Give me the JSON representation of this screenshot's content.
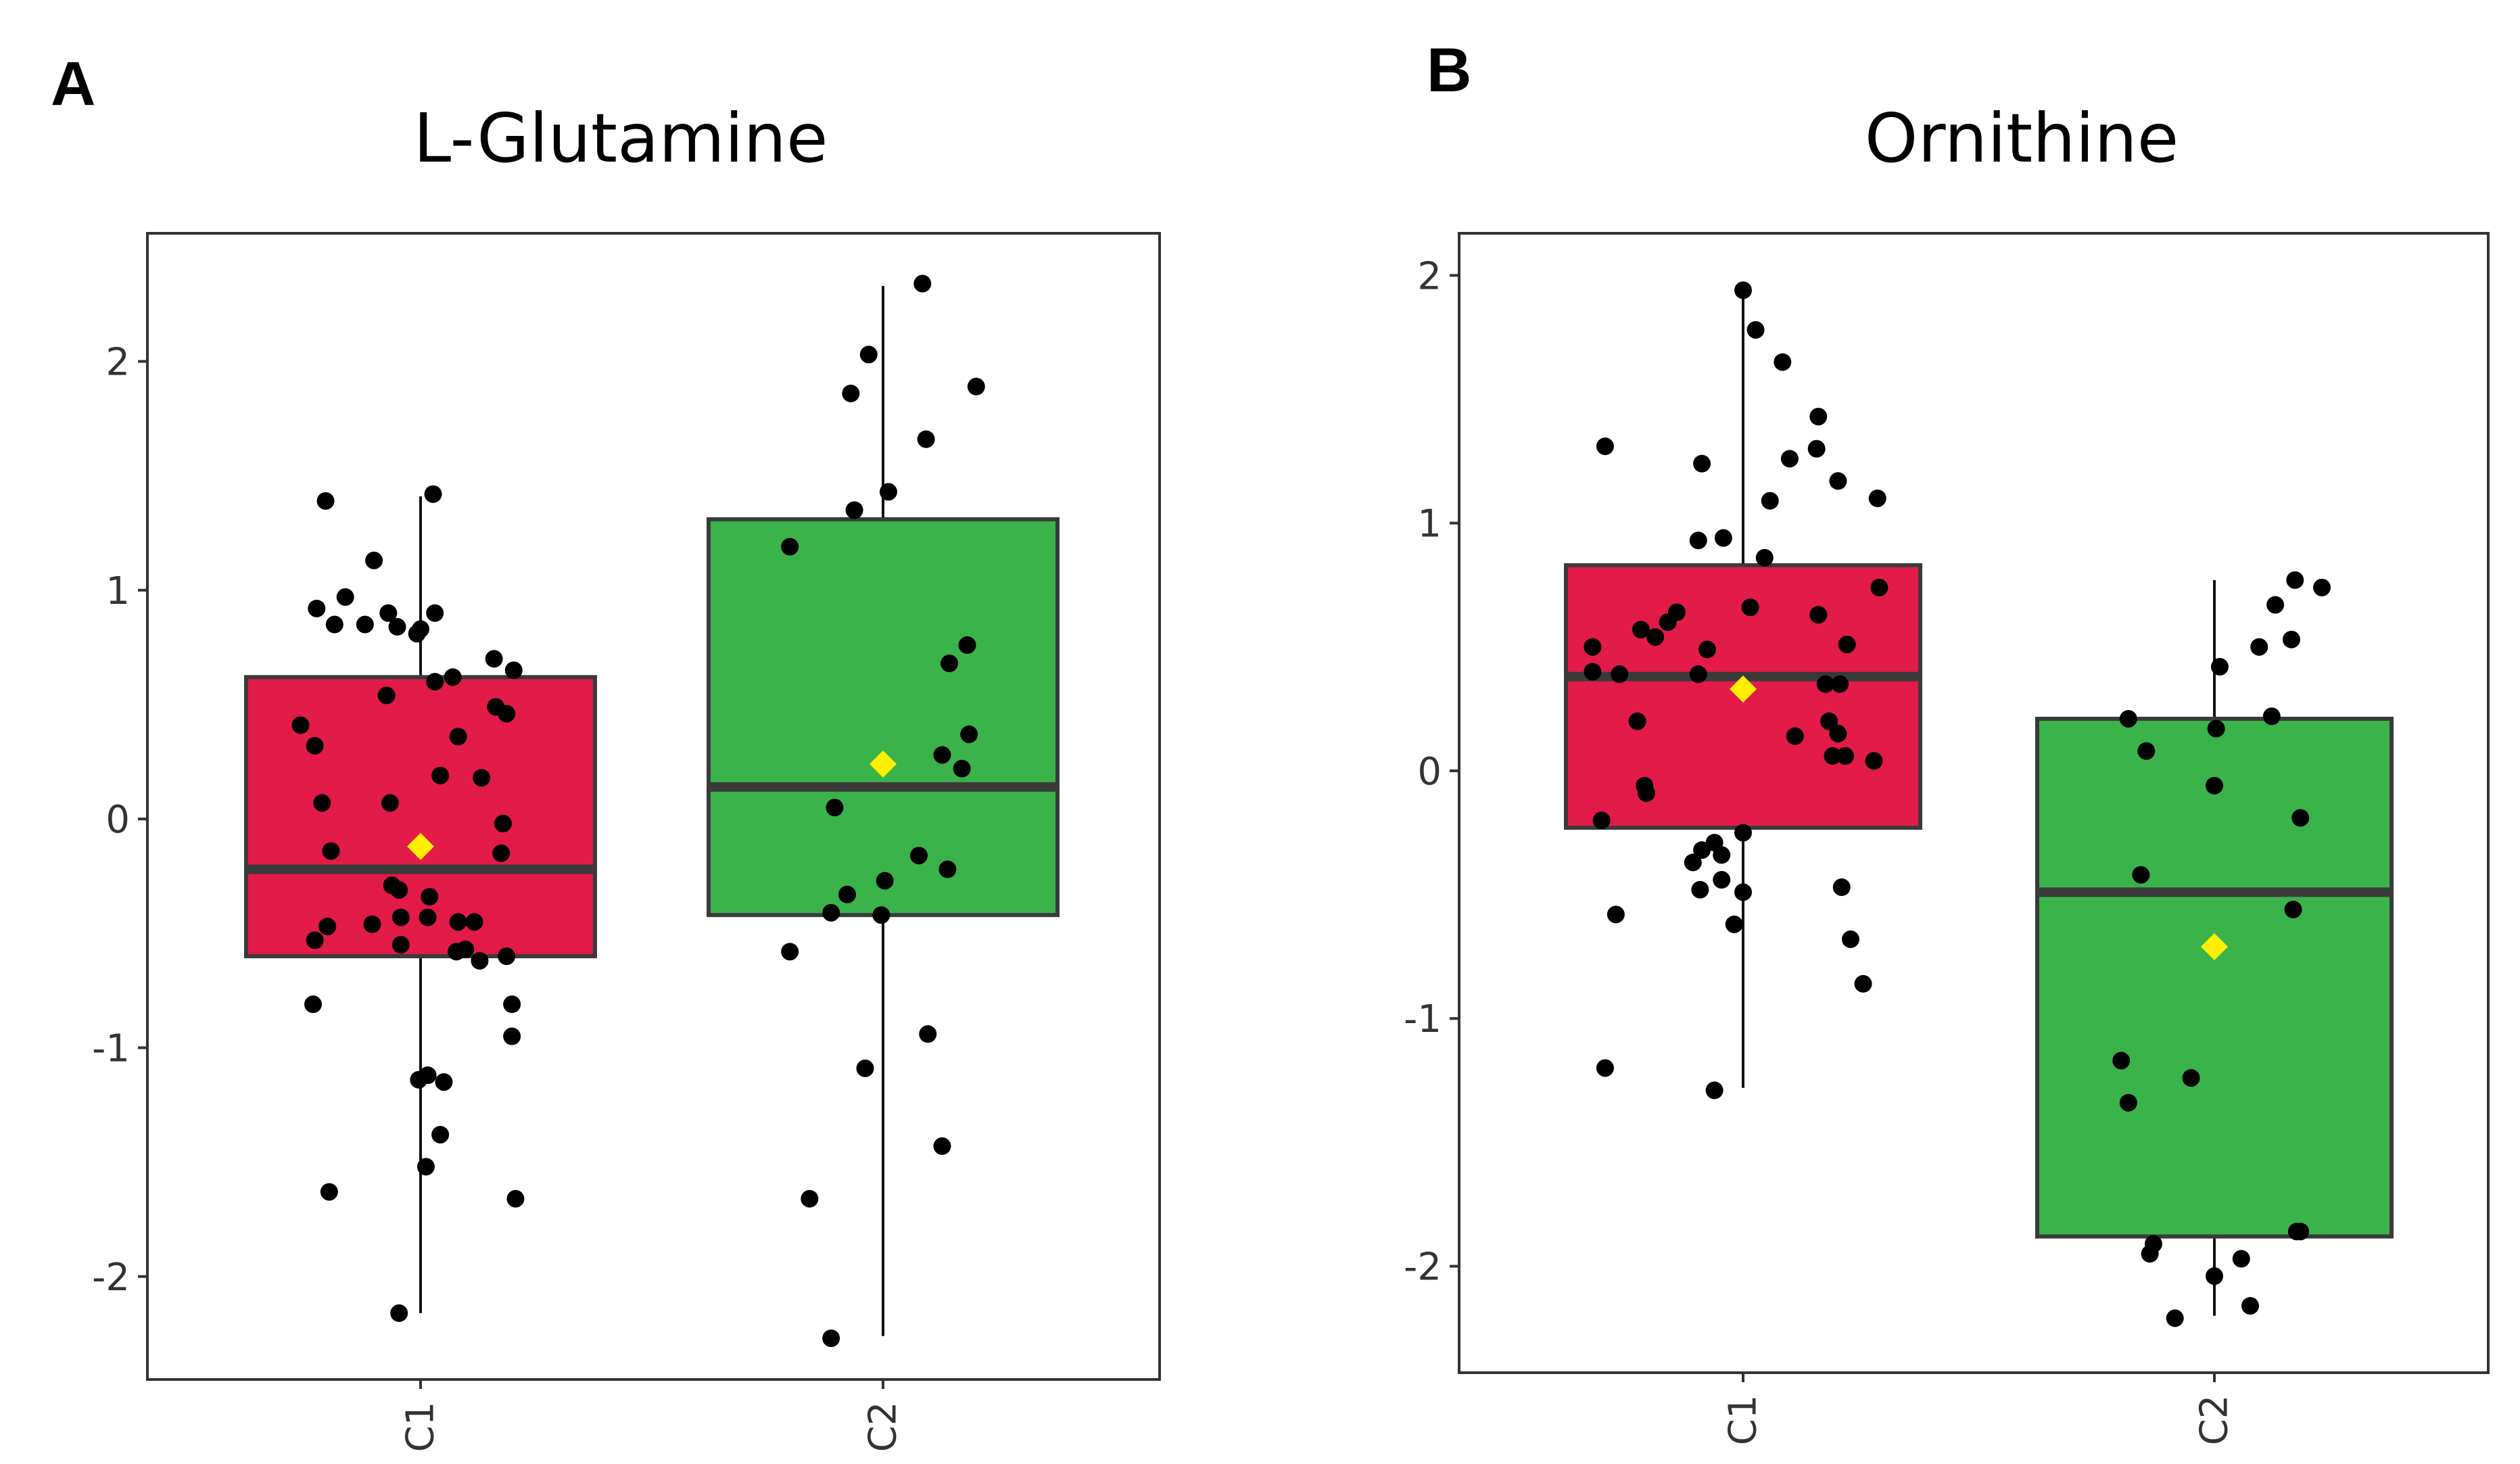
{
  "chart_data": [
    {
      "panel_label": "A",
      "type": "box",
      "title": "L-Glutamine",
      "xlabel": "",
      "ylabel": "",
      "categories": [
        "C1",
        "C2"
      ],
      "y_ticks": [
        2,
        1,
        0,
        -1,
        -2
      ],
      "y_tick_labels": [
        "2",
        "1",
        "0",
        "-1",
        "-2"
      ],
      "ylim": [
        -2.45,
        2.56
      ],
      "colors": {
        "C1": "#e31b48",
        "C2": "#3bb34b",
        "mean": "#ffee00",
        "points": "#000000"
      },
      "boxes": [
        {
          "category": "C1",
          "whisker_low": -2.16,
          "q1": -0.6,
          "median": -0.22,
          "q3": 0.62,
          "whisker_high": 1.41,
          "mean": -0.12
        },
        {
          "category": "C2",
          "whisker_low": -2.26,
          "q1": -0.42,
          "median": 0.14,
          "q3": 1.31,
          "whisker_high": 2.33,
          "mean": 0.24
        }
      ],
      "points": [
        {
          "category": "C1",
          "jitter": -0.53,
          "y": 1.39
        },
        {
          "category": "C1",
          "jitter": -0.26,
          "y": 1.13
        },
        {
          "category": "C1",
          "jitter": -0.42,
          "y": 0.97
        },
        {
          "category": "C1",
          "jitter": -0.48,
          "y": 0.85
        },
        {
          "category": "C1",
          "jitter": -0.13,
          "y": 0.84
        },
        {
          "category": "C1",
          "jitter": -0.31,
          "y": 0.85
        },
        {
          "category": "C1",
          "jitter": -0.58,
          "y": 0.92
        },
        {
          "category": "C1",
          "jitter": -0.18,
          "y": 0.9
        },
        {
          "category": "C1",
          "jitter": -0.02,
          "y": 0.81
        },
        {
          "category": "C1",
          "jitter": 0.0,
          "y": 0.83
        },
        {
          "category": "C1",
          "jitter": 0.08,
          "y": 0.9
        },
        {
          "category": "C1",
          "jitter": 0.07,
          "y": 1.42
        },
        {
          "category": "C1",
          "jitter": 0.41,
          "y": 0.7
        },
        {
          "category": "C1",
          "jitter": 0.52,
          "y": 0.65
        },
        {
          "category": "C1",
          "jitter": 0.18,
          "y": 0.62
        },
        {
          "category": "C1",
          "jitter": 0.08,
          "y": 0.6
        },
        {
          "category": "C1",
          "jitter": -0.67,
          "y": 0.41
        },
        {
          "category": "C1",
          "jitter": -0.59,
          "y": 0.32
        },
        {
          "category": "C1",
          "jitter": -0.19,
          "y": 0.54
        },
        {
          "category": "C1",
          "jitter": 0.21,
          "y": 0.36
        },
        {
          "category": "C1",
          "jitter": 0.11,
          "y": 0.19
        },
        {
          "category": "C1",
          "jitter": 0.34,
          "y": 0.18
        },
        {
          "category": "C1",
          "jitter": 0.42,
          "y": 0.49
        },
        {
          "category": "C1",
          "jitter": 0.48,
          "y": 0.46
        },
        {
          "category": "C1",
          "jitter": -0.17,
          "y": 0.07
        },
        {
          "category": "C1",
          "jitter": -0.55,
          "y": 0.07
        },
        {
          "category": "C1",
          "jitter": -0.5,
          "y": -0.14
        },
        {
          "category": "C1",
          "jitter": 0.46,
          "y": -0.02
        },
        {
          "category": "C1",
          "jitter": 0.45,
          "y": -0.15
        },
        {
          "category": "C1",
          "jitter": -0.16,
          "y": -0.29
        },
        {
          "category": "C1",
          "jitter": -0.12,
          "y": -0.31
        },
        {
          "category": "C1",
          "jitter": 0.05,
          "y": -0.34
        },
        {
          "category": "C1",
          "jitter": -0.11,
          "y": -0.43
        },
        {
          "category": "C1",
          "jitter": 0.04,
          "y": -0.43
        },
        {
          "category": "C1",
          "jitter": 0.21,
          "y": -0.45
        },
        {
          "category": "C1",
          "jitter": 0.3,
          "y": -0.45
        },
        {
          "category": "C1",
          "jitter": -0.27,
          "y": -0.46
        },
        {
          "category": "C1",
          "jitter": -0.52,
          "y": -0.47
        },
        {
          "category": "C1",
          "jitter": -0.59,
          "y": -0.53
        },
        {
          "category": "C1",
          "jitter": -0.11,
          "y": -0.55
        },
        {
          "category": "C1",
          "jitter": 0.2,
          "y": -0.58
        },
        {
          "category": "C1",
          "jitter": 0.25,
          "y": -0.57
        },
        {
          "category": "C1",
          "jitter": 0.33,
          "y": -0.62
        },
        {
          "category": "C1",
          "jitter": 0.48,
          "y": -0.6
        },
        {
          "category": "C1",
          "jitter": -0.6,
          "y": -0.81
        },
        {
          "category": "C1",
          "jitter": 0.51,
          "y": -0.81
        },
        {
          "category": "C1",
          "jitter": 0.51,
          "y": -0.95
        },
        {
          "category": "C1",
          "jitter": -0.01,
          "y": -1.14
        },
        {
          "category": "C1",
          "jitter": 0.04,
          "y": -1.12
        },
        {
          "category": "C1",
          "jitter": 0.13,
          "y": -1.15
        },
        {
          "category": "C1",
          "jitter": 0.11,
          "y": -1.38
        },
        {
          "category": "C1",
          "jitter": 0.03,
          "y": -1.52
        },
        {
          "category": "C1",
          "jitter": -0.51,
          "y": -1.63
        },
        {
          "category": "C1",
          "jitter": 0.53,
          "y": -1.66
        },
        {
          "category": "C1",
          "jitter": -0.12,
          "y": -2.16
        },
        {
          "category": "C2",
          "jitter": 0.22,
          "y": 2.34
        },
        {
          "category": "C2",
          "jitter": 0.52,
          "y": 1.89
        },
        {
          "category": "C2",
          "jitter": -0.08,
          "y": 2.03
        },
        {
          "category": "C2",
          "jitter": -0.18,
          "y": 1.86
        },
        {
          "category": "C2",
          "jitter": 0.24,
          "y": 1.66
        },
        {
          "category": "C2",
          "jitter": 0.03,
          "y": 1.43
        },
        {
          "category": "C2",
          "jitter": -0.16,
          "y": 1.35
        },
        {
          "category": "C2",
          "jitter": -0.52,
          "y": 1.19
        },
        {
          "category": "C2",
          "jitter": 0.47,
          "y": 0.76
        },
        {
          "category": "C2",
          "jitter": 0.37,
          "y": 0.68
        },
        {
          "category": "C2",
          "jitter": 0.48,
          "y": 0.37
        },
        {
          "category": "C2",
          "jitter": 0.33,
          "y": 0.28
        },
        {
          "category": "C2",
          "jitter": 0.44,
          "y": 0.22
        },
        {
          "category": "C2",
          "jitter": -0.27,
          "y": 0.05
        },
        {
          "category": "C2",
          "jitter": 0.2,
          "y": -0.16
        },
        {
          "category": "C2",
          "jitter": 0.36,
          "y": -0.22
        },
        {
          "category": "C2",
          "jitter": 0.01,
          "y": -0.27
        },
        {
          "category": "C2",
          "jitter": -0.2,
          "y": -0.33
        },
        {
          "category": "C2",
          "jitter": -0.29,
          "y": -0.41
        },
        {
          "category": "C2",
          "jitter": -0.01,
          "y": -0.42
        },
        {
          "category": "C2",
          "jitter": -0.52,
          "y": -0.58
        },
        {
          "category": "C2",
          "jitter": 0.25,
          "y": -0.94
        },
        {
          "category": "C2",
          "jitter": -0.1,
          "y": -1.09
        },
        {
          "category": "C2",
          "jitter": 0.33,
          "y": -1.43
        },
        {
          "category": "C2",
          "jitter": -0.41,
          "y": -1.66
        },
        {
          "category": "C2",
          "jitter": -0.29,
          "y": -2.27
        }
      ]
    },
    {
      "panel_label": "B",
      "type": "box",
      "title": "Ornithine",
      "xlabel": "",
      "ylabel": "",
      "categories": [
        "C1",
        "C2"
      ],
      "y_ticks": [
        2,
        1,
        0,
        -1,
        -2
      ],
      "y_tick_labels": [
        "2",
        "1",
        "0",
        "-1",
        "-2"
      ],
      "ylim": [
        -2.43,
        2.17
      ],
      "colors": {
        "C1": "#e31b48",
        "C2": "#3bb34b",
        "mean": "#ffee00",
        "points": "#000000"
      },
      "boxes": [
        {
          "category": "C1",
          "whisker_low": -1.28,
          "q1": -0.23,
          "median": 0.38,
          "q3": 0.83,
          "whisker_high": 1.94,
          "mean": 0.33
        },
        {
          "category": "C2",
          "whisker_low": -2.2,
          "q1": -1.88,
          "median": -0.49,
          "q3": 0.21,
          "whisker_high": 0.77,
          "mean": -0.71
        }
      ],
      "points": [
        {
          "category": "C1",
          "jitter": 0.0,
          "y": 1.94
        },
        {
          "category": "C1",
          "jitter": 0.07,
          "y": 1.78
        },
        {
          "category": "C1",
          "jitter": 0.22,
          "y": 1.65
        },
        {
          "category": "C1",
          "jitter": 0.42,
          "y": 1.43
        },
        {
          "category": "C1",
          "jitter": -0.77,
          "y": 1.31
        },
        {
          "category": "C1",
          "jitter": 0.41,
          "y": 1.3
        },
        {
          "category": "C1",
          "jitter": 0.26,
          "y": 1.26
        },
        {
          "category": "C1",
          "jitter": -0.23,
          "y": 1.24
        },
        {
          "category": "C1",
          "jitter": 0.53,
          "y": 1.17
        },
        {
          "category": "C1",
          "jitter": 0.15,
          "y": 1.09
        },
        {
          "category": "C1",
          "jitter": 0.75,
          "y": 1.1
        },
        {
          "category": "C1",
          "jitter": -0.25,
          "y": 0.93
        },
        {
          "category": "C1",
          "jitter": -0.11,
          "y": 0.94
        },
        {
          "category": "C1",
          "jitter": 0.12,
          "y": 0.86
        },
        {
          "category": "C1",
          "jitter": 0.76,
          "y": 0.74
        },
        {
          "category": "C1",
          "jitter": 0.04,
          "y": 0.66
        },
        {
          "category": "C1",
          "jitter": 0.42,
          "y": 0.63
        },
        {
          "category": "C1",
          "jitter": -0.37,
          "y": 0.64
        },
        {
          "category": "C1",
          "jitter": -0.42,
          "y": 0.6
        },
        {
          "category": "C1",
          "jitter": -0.57,
          "y": 0.57
        },
        {
          "category": "C1",
          "jitter": -0.49,
          "y": 0.54
        },
        {
          "category": "C1",
          "jitter": -0.84,
          "y": 0.5
        },
        {
          "category": "C1",
          "jitter": -0.2,
          "y": 0.49
        },
        {
          "category": "C1",
          "jitter": 0.58,
          "y": 0.51
        },
        {
          "category": "C1",
          "jitter": -0.84,
          "y": 0.4
        },
        {
          "category": "C1",
          "jitter": -0.69,
          "y": 0.39
        },
        {
          "category": "C1",
          "jitter": -0.25,
          "y": 0.39
        },
        {
          "category": "C1",
          "jitter": 0.46,
          "y": 0.35
        },
        {
          "category": "C1",
          "jitter": 0.54,
          "y": 0.35
        },
        {
          "category": "C1",
          "jitter": 0.48,
          "y": 0.2
        },
        {
          "category": "C1",
          "jitter": -0.59,
          "y": 0.2
        },
        {
          "category": "C1",
          "jitter": 0.53,
          "y": 0.15
        },
        {
          "category": "C1",
          "jitter": 0.29,
          "y": 0.14
        },
        {
          "category": "C1",
          "jitter": 0.5,
          "y": 0.06
        },
        {
          "category": "C1",
          "jitter": 0.57,
          "y": 0.06
        },
        {
          "category": "C1",
          "jitter": 0.73,
          "y": 0.04
        },
        {
          "category": "C1",
          "jitter": -0.55,
          "y": -0.06
        },
        {
          "category": "C1",
          "jitter": -0.54,
          "y": -0.09
        },
        {
          "category": "C1",
          "jitter": -0.79,
          "y": -0.2
        },
        {
          "category": "C1",
          "jitter": 0.0,
          "y": -0.25
        },
        {
          "category": "C1",
          "jitter": -0.16,
          "y": -0.29
        },
        {
          "category": "C1",
          "jitter": -0.23,
          "y": -0.32
        },
        {
          "category": "C1",
          "jitter": -0.12,
          "y": -0.34
        },
        {
          "category": "C1",
          "jitter": -0.28,
          "y": -0.37
        },
        {
          "category": "C1",
          "jitter": -0.12,
          "y": -0.44
        },
        {
          "category": "C1",
          "jitter": -0.24,
          "y": -0.48
        },
        {
          "category": "C1",
          "jitter": 0.0,
          "y": -0.49
        },
        {
          "category": "C1",
          "jitter": 0.55,
          "y": -0.47
        },
        {
          "category": "C1",
          "jitter": -0.71,
          "y": -0.58
        },
        {
          "category": "C1",
          "jitter": -0.05,
          "y": -0.62
        },
        {
          "category": "C1",
          "jitter": 0.6,
          "y": -0.68
        },
        {
          "category": "C1",
          "jitter": 0.67,
          "y": -0.86
        },
        {
          "category": "C1",
          "jitter": -0.77,
          "y": -1.2
        },
        {
          "category": "C1",
          "jitter": -0.16,
          "y": -1.29
        },
        {
          "category": "C2",
          "jitter": 0.45,
          "y": 0.77
        },
        {
          "category": "C2",
          "jitter": 0.6,
          "y": 0.74
        },
        {
          "category": "C2",
          "jitter": 0.34,
          "y": 0.67
        },
        {
          "category": "C2",
          "jitter": 0.43,
          "y": 0.53
        },
        {
          "category": "C2",
          "jitter": 0.25,
          "y": 0.5
        },
        {
          "category": "C2",
          "jitter": 0.03,
          "y": 0.42
        },
        {
          "category": "C2",
          "jitter": 0.32,
          "y": 0.22
        },
        {
          "category": "C2",
          "jitter": -0.48,
          "y": 0.21
        },
        {
          "category": "C2",
          "jitter": 0.01,
          "y": 0.17
        },
        {
          "category": "C2",
          "jitter": -0.38,
          "y": 0.08
        },
        {
          "category": "C2",
          "jitter": 0.0,
          "y": -0.06
        },
        {
          "category": "C2",
          "jitter": 0.48,
          "y": -0.19
        },
        {
          "category": "C2",
          "jitter": -0.41,
          "y": -0.42
        },
        {
          "category": "C2",
          "jitter": 0.44,
          "y": -0.56
        },
        {
          "category": "C2",
          "jitter": -0.52,
          "y": -1.17
        },
        {
          "category": "C2",
          "jitter": -0.13,
          "y": -1.24
        },
        {
          "category": "C2",
          "jitter": -0.48,
          "y": -1.34
        },
        {
          "category": "C2",
          "jitter": 0.46,
          "y": -1.86
        },
        {
          "category": "C2",
          "jitter": 0.48,
          "y": -1.86
        },
        {
          "category": "C2",
          "jitter": -0.34,
          "y": -1.91
        },
        {
          "category": "C2",
          "jitter": -0.36,
          "y": -1.95
        },
        {
          "category": "C2",
          "jitter": 0.15,
          "y": -1.97
        },
        {
          "category": "C2",
          "jitter": 0.0,
          "y": -2.04
        },
        {
          "category": "C2",
          "jitter": 0.2,
          "y": -2.16
        },
        {
          "category": "C2",
          "jitter": -0.22,
          "y": -2.21
        }
      ]
    }
  ]
}
